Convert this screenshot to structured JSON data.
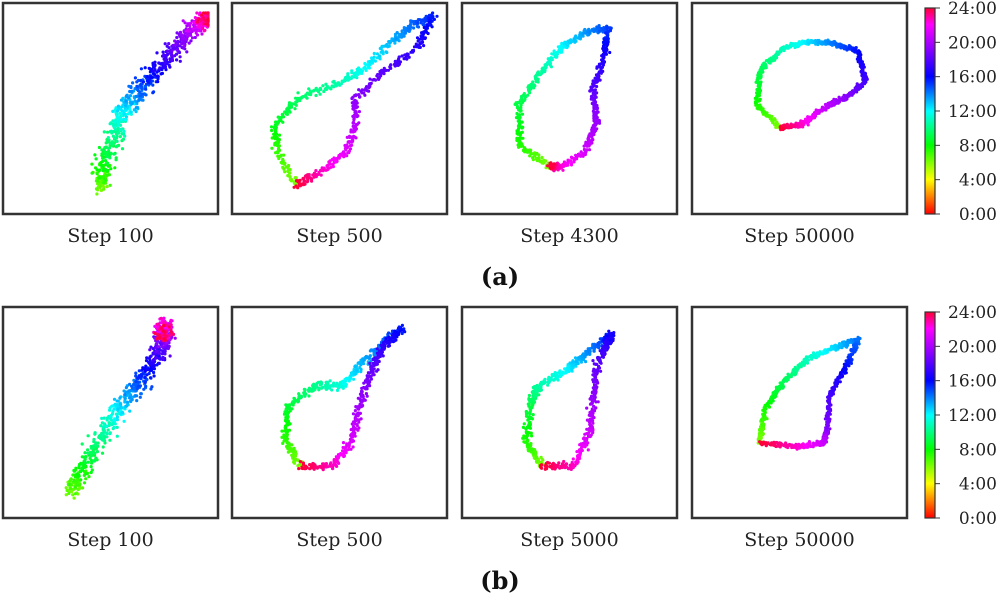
{
  "colors": {
    "frame": "#333333",
    "colormap": [
      "#ff0000",
      "#ffff00",
      "#00ff00",
      "#00ffff",
      "#0000ff",
      "#8a00ff",
      "#ff00ff",
      "#ff0033"
    ]
  },
  "colorbar": {
    "ticks": [
      "0:00",
      "4:00",
      "8:00",
      "12:00",
      "16:00",
      "20:00",
      "24:00"
    ],
    "range": [
      0,
      24
    ]
  },
  "rows": [
    {
      "label": "(a)",
      "panels": [
        {
          "label": "Step 100",
          "path": [
            [
              0.45,
              0.08
            ],
            [
              0.46,
              0.2
            ],
            [
              0.52,
              0.36
            ],
            [
              0.56,
              0.48
            ],
            [
              0.64,
              0.58
            ],
            [
              0.72,
              0.68
            ],
            [
              0.82,
              0.8
            ],
            [
              0.92,
              0.91
            ],
            [
              0.98,
              0.96
            ],
            [
              1.0,
              0.98
            ]
          ],
          "spread": 0.07
        },
        {
          "label": "Step 500",
          "path": [
            [
              0.28,
              0.1
            ],
            [
              0.18,
              0.28
            ],
            [
              0.17,
              0.42
            ],
            [
              0.3,
              0.56
            ],
            [
              0.52,
              0.64
            ],
            [
              0.64,
              0.72
            ],
            [
              0.78,
              0.86
            ],
            [
              0.88,
              0.94
            ],
            [
              0.98,
              0.98
            ],
            [
              0.9,
              0.83
            ],
            [
              0.74,
              0.7
            ],
            [
              0.58,
              0.55
            ],
            [
              0.58,
              0.4
            ],
            [
              0.52,
              0.26
            ],
            [
              0.38,
              0.15
            ],
            [
              0.28,
              0.1
            ]
          ],
          "spread": 0.03
        },
        {
          "label": "Step 4300",
          "path": [
            [
              0.4,
              0.2
            ],
            [
              0.25,
              0.3
            ],
            [
              0.24,
              0.52
            ],
            [
              0.36,
              0.7
            ],
            [
              0.46,
              0.82
            ],
            [
              0.58,
              0.9
            ],
            [
              0.7,
              0.92
            ],
            [
              0.68,
              0.78
            ],
            [
              0.62,
              0.6
            ],
            [
              0.64,
              0.44
            ],
            [
              0.58,
              0.27
            ],
            [
              0.44,
              0.19
            ],
            [
              0.4,
              0.2
            ]
          ],
          "spread": 0.025
        },
        {
          "label": "Step 50000",
          "path": [
            [
              0.4,
              0.4
            ],
            [
              0.28,
              0.52
            ],
            [
              0.3,
              0.7
            ],
            [
              0.42,
              0.82
            ],
            [
              0.56,
              0.85
            ],
            [
              0.68,
              0.84
            ],
            [
              0.8,
              0.8
            ],
            [
              0.84,
              0.64
            ],
            [
              0.74,
              0.56
            ],
            [
              0.62,
              0.5
            ],
            [
              0.52,
              0.42
            ],
            [
              0.4,
              0.4
            ]
          ],
          "spread": 0.02
        }
      ]
    },
    {
      "label": "(b)",
      "panels": [
        {
          "label": "Step 100",
          "path": [
            [
              0.3,
              0.08
            ],
            [
              0.36,
              0.2
            ],
            [
              0.44,
              0.36
            ],
            [
              0.54,
              0.5
            ],
            [
              0.62,
              0.62
            ],
            [
              0.7,
              0.74
            ],
            [
              0.76,
              0.84
            ],
            [
              0.78,
              0.92
            ],
            [
              0.78,
              0.96
            ],
            [
              0.76,
              0.9
            ]
          ],
          "spread": 0.07
        },
        {
          "label": "Step 500",
          "path": [
            [
              0.3,
              0.22
            ],
            [
              0.22,
              0.36
            ],
            [
              0.24,
              0.54
            ],
            [
              0.38,
              0.64
            ],
            [
              0.52,
              0.64
            ],
            [
              0.6,
              0.74
            ],
            [
              0.72,
              0.86
            ],
            [
              0.82,
              0.94
            ],
            [
              0.72,
              0.84
            ],
            [
              0.66,
              0.7
            ],
            [
              0.6,
              0.52
            ],
            [
              0.56,
              0.34
            ],
            [
              0.46,
              0.22
            ],
            [
              0.3,
              0.22
            ]
          ],
          "spread": 0.03
        },
        {
          "label": "Step 5000",
          "path": [
            [
              0.36,
              0.22
            ],
            [
              0.28,
              0.34
            ],
            [
              0.3,
              0.54
            ],
            [
              0.34,
              0.64
            ],
            [
              0.48,
              0.72
            ],
            [
              0.58,
              0.8
            ],
            [
              0.68,
              0.88
            ],
            [
              0.72,
              0.9
            ],
            [
              0.64,
              0.76
            ],
            [
              0.62,
              0.56
            ],
            [
              0.6,
              0.38
            ],
            [
              0.52,
              0.22
            ],
            [
              0.36,
              0.22
            ]
          ],
          "spread": 0.03
        },
        {
          "label": "Step 50000",
          "path": [
            [
              0.3,
              0.34
            ],
            [
              0.32,
              0.52
            ],
            [
              0.42,
              0.66
            ],
            [
              0.54,
              0.78
            ],
            [
              0.68,
              0.84
            ],
            [
              0.8,
              0.88
            ],
            [
              0.74,
              0.74
            ],
            [
              0.66,
              0.6
            ],
            [
              0.64,
              0.4
            ],
            [
              0.62,
              0.34
            ],
            [
              0.5,
              0.32
            ],
            [
              0.3,
              0.34
            ]
          ],
          "spread": 0.02
        }
      ]
    }
  ],
  "chart_data": [
    {
      "type": "scatter",
      "title": "",
      "xlabel": "Step 100",
      "ylabel": "",
      "colorbar_range": [
        0,
        24
      ],
      "colorbar_ticks": [
        "0:00",
        "4:00",
        "8:00",
        "12:00",
        "16:00",
        "20:00",
        "24:00"
      ],
      "point_count": 700
    },
    {
      "type": "scatter",
      "title": "",
      "xlabel": "Step 500",
      "ylabel": "",
      "colorbar_range": [
        0,
        24
      ],
      "point_count": 700
    },
    {
      "type": "scatter",
      "title": "",
      "xlabel": "Step 4300",
      "ylabel": "",
      "colorbar_range": [
        0,
        24
      ],
      "point_count": 700
    },
    {
      "type": "scatter",
      "title": "",
      "xlabel": "Step 50000",
      "ylabel": "",
      "colorbar_range": [
        0,
        24
      ],
      "point_count": 700
    },
    {
      "type": "scatter",
      "title": "",
      "xlabel": "Step 100",
      "ylabel": "",
      "colorbar_range": [
        0,
        24
      ],
      "point_count": 700
    },
    {
      "type": "scatter",
      "title": "",
      "xlabel": "Step 500",
      "ylabel": "",
      "colorbar_range": [
        0,
        24
      ],
      "point_count": 700
    },
    {
      "type": "scatter",
      "title": "",
      "xlabel": "Step 5000",
      "ylabel": "",
      "colorbar_range": [
        0,
        24
      ],
      "point_count": 700
    },
    {
      "type": "scatter",
      "title": "",
      "xlabel": "Step 50000",
      "ylabel": "",
      "colorbar_range": [
        0,
        24
      ],
      "point_count": 700
    }
  ]
}
